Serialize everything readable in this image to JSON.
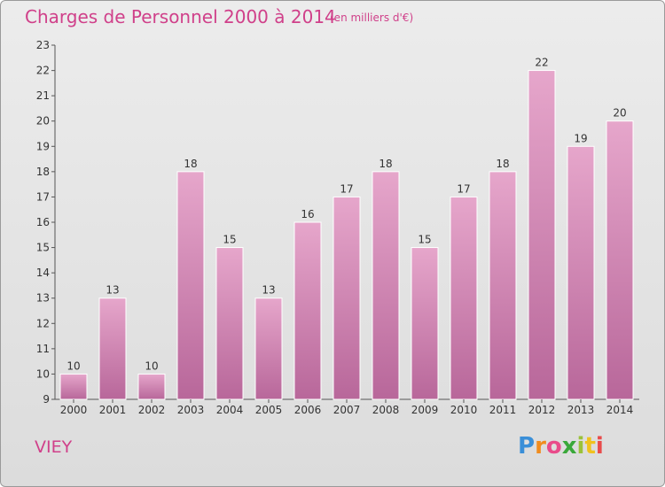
{
  "chart_data": {
    "type": "bar",
    "title": "Charges de Personnel 2000 à 2014",
    "subtitle": "(en milliers d'€)",
    "categories": [
      "2000",
      "2001",
      "2002",
      "2003",
      "2004",
      "2005",
      "2006",
      "2007",
      "2008",
      "2009",
      "2010",
      "2011",
      "2012",
      "2013",
      "2014"
    ],
    "values": [
      10,
      13,
      10,
      18,
      15,
      13,
      16,
      17,
      18,
      15,
      17,
      18,
      22,
      19,
      20
    ],
    "ylim": [
      9,
      23
    ],
    "yticks": [
      9,
      10,
      11,
      12,
      13,
      14,
      15,
      16,
      17,
      18,
      19,
      20,
      21,
      22,
      23
    ],
    "grid": false,
    "bar_color": "#d98cb8",
    "xlabel": "",
    "ylabel": ""
  },
  "place_name": "VIEY",
  "logo": {
    "letters": [
      "P",
      "r",
      "o",
      "x",
      "i",
      "t",
      "i"
    ],
    "colors": [
      "#3a8fd8",
      "#f08c1e",
      "#e94b8a",
      "#3aa83a",
      "#9ac23a",
      "#f0c21e",
      "#e94b4b"
    ]
  },
  "colors": {
    "accent": "#d0408a",
    "bar": "#d98cb8"
  }
}
